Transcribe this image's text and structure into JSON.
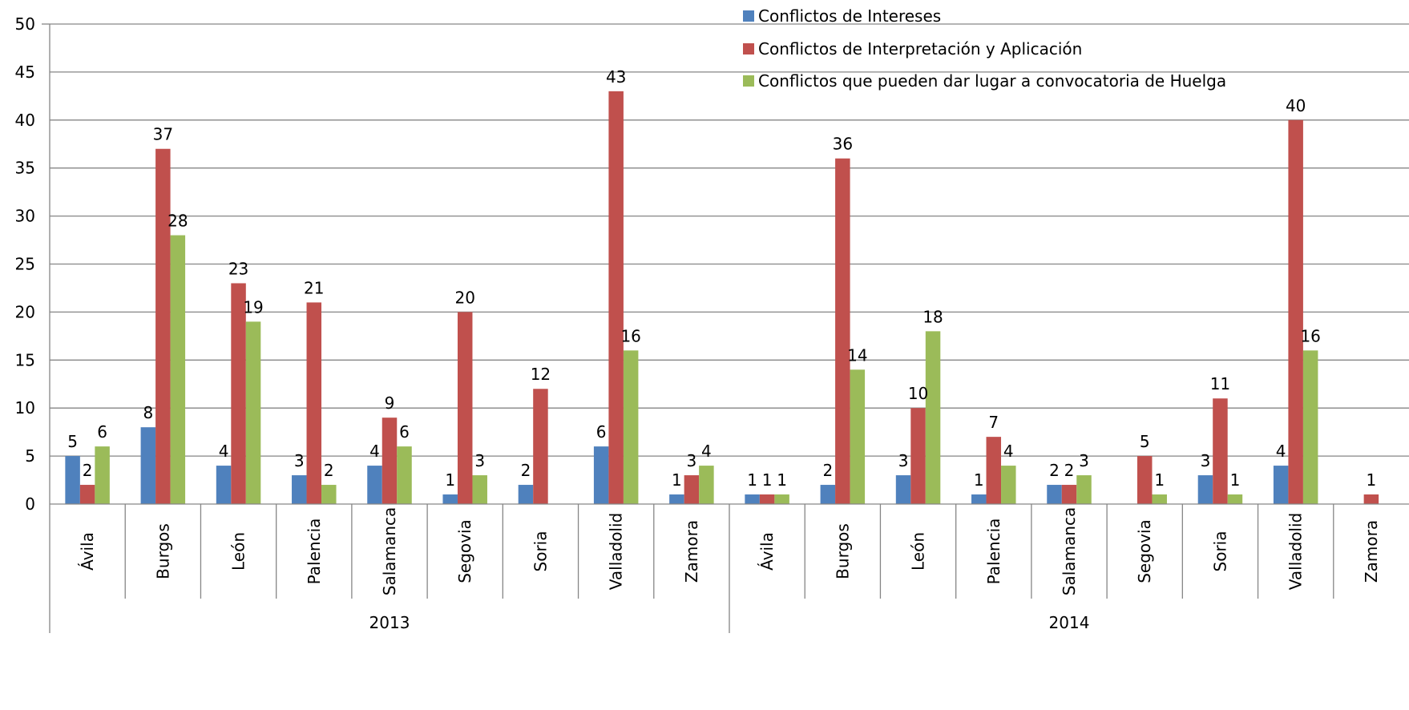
{
  "chart_data": {
    "type": "bar",
    "title": "",
    "xlabel": "",
    "ylabel": "",
    "ylim": [
      0,
      50
    ],
    "yticks": [
      0,
      5,
      10,
      15,
      20,
      25,
      30,
      35,
      40,
      45,
      50
    ],
    "grid": true,
    "legend_position": "top-right",
    "groups": [
      {
        "label": "2013",
        "categories": [
          "Ávila",
          "Burgos",
          "León",
          "Palencia",
          "Salamanca",
          "Segovia",
          "Soria",
          "Valladolid",
          "Zamora"
        ]
      },
      {
        "label": "2014",
        "categories": [
          "Ávila",
          "Burgos",
          "León",
          "Palencia",
          "Salamanca",
          "Segovia",
          "Soria",
          "Valladolid",
          "Zamora"
        ]
      }
    ],
    "series": [
      {
        "name": "Conflictos de Intereses",
        "color": "#4F81BD",
        "values": [
          5,
          8,
          4,
          3,
          4,
          1,
          2,
          6,
          1,
          1,
          2,
          3,
          1,
          2,
          null,
          3,
          4,
          null
        ]
      },
      {
        "name": "Conflictos de Interpretación y Aplicación",
        "color": "#C0504D",
        "values": [
          2,
          37,
          23,
          21,
          9,
          20,
          12,
          43,
          3,
          1,
          36,
          10,
          7,
          2,
          5,
          11,
          40,
          1
        ]
      },
      {
        "name": "Conflictos que pueden dar lugar a convocatoria de Huelga",
        "color": "#9BBB59",
        "values": [
          6,
          28,
          19,
          2,
          6,
          3,
          null,
          16,
          4,
          1,
          14,
          18,
          4,
          3,
          1,
          1,
          16,
          null
        ]
      }
    ]
  }
}
